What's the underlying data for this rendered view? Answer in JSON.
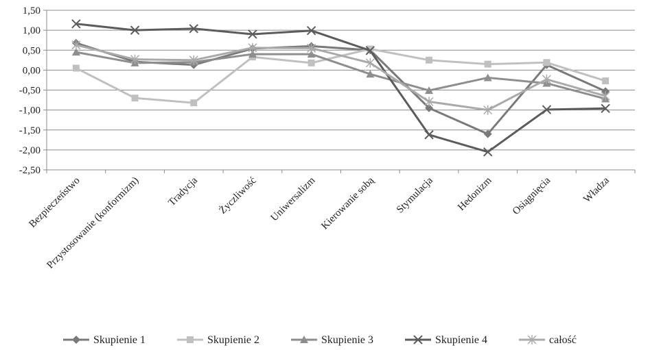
{
  "chart_data": {
    "type": "line",
    "categories": [
      "Bezpieczeństwo",
      "Przystosowanie (konformizm)",
      "Tradycja",
      "Życzliwość",
      "Uniwersalizm",
      "Kierowanie sobą",
      "Stymulacja",
      "Hedonizm",
      "Osiągnięcia",
      "Władza"
    ],
    "ylim": [
      -2.5,
      1.5
    ],
    "yticks": [
      "1,50",
      "1,00",
      "0,50",
      "0,00",
      "-0,50",
      "-1,00",
      "-1,50",
      "-2,00",
      "-2,50"
    ],
    "grid": true,
    "legend_position": "bottom",
    "series": [
      {
        "name": "Skupienie 1",
        "color": "#7a7a7a",
        "marker": "diamond",
        "values": [
          0.68,
          0.21,
          0.13,
          0.54,
          0.6,
          0.5,
          -0.95,
          -1.6,
          0.13,
          -0.53
        ]
      },
      {
        "name": "Skupienie 2",
        "color": "#c0c0c0",
        "marker": "square",
        "values": [
          0.05,
          -0.7,
          -0.82,
          0.33,
          0.18,
          0.53,
          0.25,
          0.15,
          0.19,
          -0.27
        ]
      },
      {
        "name": "Skupienie 3",
        "color": "#8e8e8e",
        "marker": "triangle",
        "values": [
          0.45,
          0.18,
          0.2,
          0.4,
          0.4,
          -0.1,
          -0.51,
          -0.19,
          -0.33,
          -0.72
        ]
      },
      {
        "name": "Skupienie 4",
        "color": "#5c5c5c",
        "marker": "x",
        "values": [
          1.16,
          1.0,
          1.04,
          0.9,
          0.99,
          0.49,
          -1.62,
          -2.05,
          -0.99,
          -0.96
        ]
      },
      {
        "name": "całość",
        "color": "#aaaaaa",
        "marker": "asterisk",
        "values": [
          0.63,
          0.27,
          0.25,
          0.56,
          0.55,
          0.18,
          -0.79,
          -1.0,
          -0.23,
          -0.65
        ]
      }
    ]
  }
}
